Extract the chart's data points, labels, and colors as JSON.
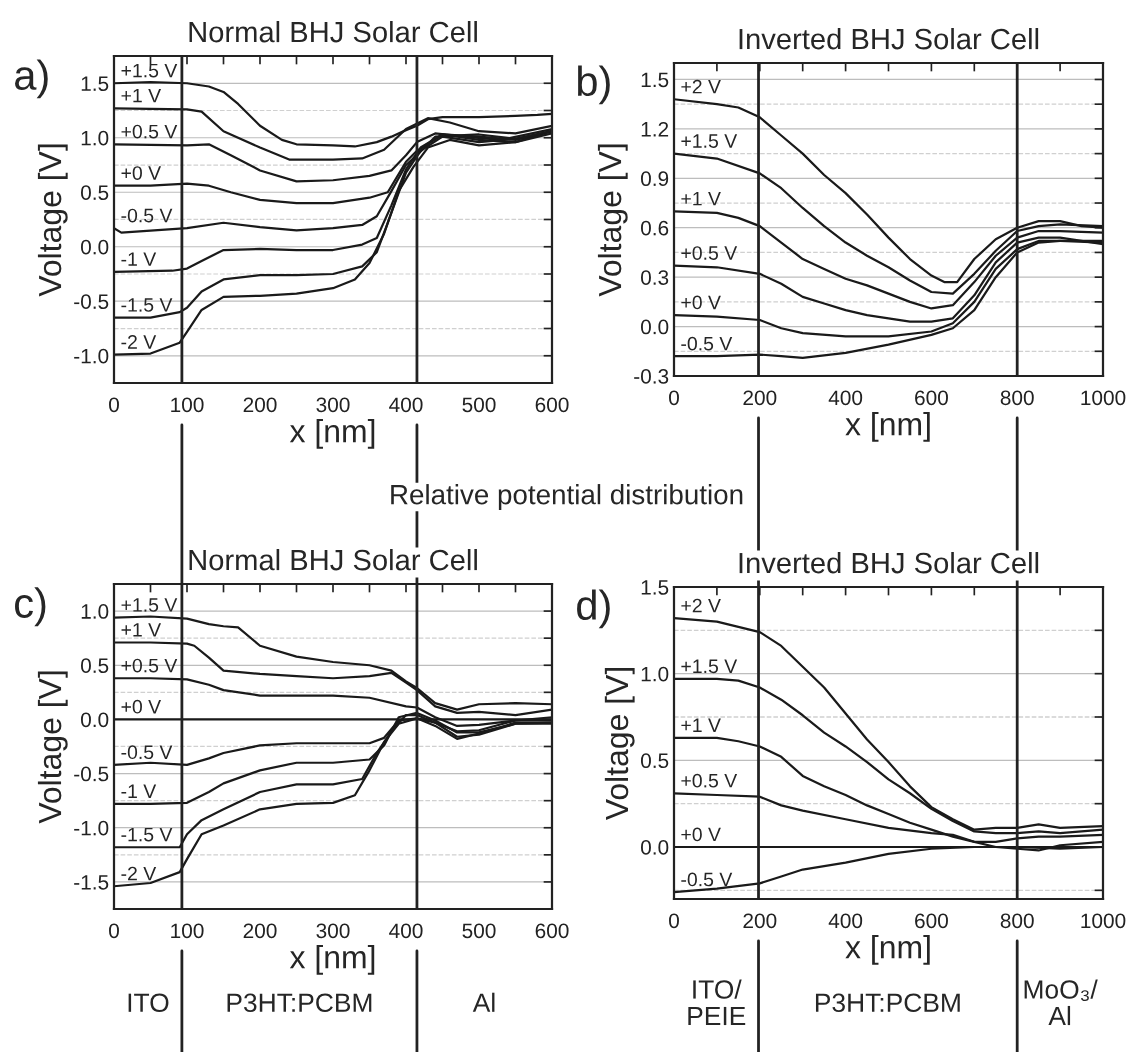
{
  "chart_data": [
    {
      "type": "line",
      "title": "Normal BHJ Solar Cell",
      "xlabel": "x [nm]",
      "ylabel": "Voltage [V]",
      "annotations": [
        "a)"
      ],
      "xlim": [
        0,
        600
      ],
      "ylim": [
        -1.25,
        1.75
      ],
      "xticks": [
        0,
        {
          "value": 50,
          "label": null
        },
        100,
        {
          "value": 150,
          "label": null
        },
        200,
        {
          "value": 250,
          "label": null
        },
        300,
        {
          "value": 350,
          "label": null
        },
        400,
        {
          "value": 450,
          "label": null
        },
        500,
        {
          "value": 550,
          "label": null
        },
        600
      ],
      "yticks": [
        {
          "value": -1,
          "label": "-1.0"
        },
        {
          "value": -0.75,
          "label": null
        },
        -0.5,
        {
          "value": -0.25,
          "label": null
        },
        {
          "value": 0,
          "label": "0.0"
        },
        {
          "value": 0.25,
          "label": null
        },
        0.5,
        {
          "value": 0.75,
          "label": null
        },
        {
          "value": 1,
          "label": "1.0"
        },
        {
          "value": 1.25,
          "label": null
        },
        1.5
      ],
      "grid": "y",
      "line_style": "solid",
      "marker": "none",
      "ref_lines": [
        {
          "axis": "x",
          "value": 93,
          "color": "#222222"
        },
        {
          "axis": "x",
          "value": 415,
          "color": "#222222"
        }
      ],
      "series": [
        {
          "name": "+1.5 V",
          "color": "#1a1a1a",
          "x": [
            0,
            50,
            100,
            130,
            150,
            170,
            200,
            230,
            250,
            300,
            330,
            360,
            380,
            400,
            415,
            430,
            450,
            500,
            550,
            580,
            600
          ],
          "values": [
            1.5,
            1.51,
            1.5,
            1.47,
            1.42,
            1.31,
            1.11,
            0.98,
            0.94,
            0.93,
            0.92,
            0.96,
            1.01,
            1.07,
            1.11,
            1.17,
            1.19,
            1.19,
            1.2,
            1.21,
            1.22
          ]
        },
        {
          "name": "+1 V",
          "color": "#1a1a1a",
          "x": [
            0,
            100,
            120,
            150,
            200,
            240,
            300,
            340,
            370,
            400,
            430,
            460,
            500,
            550,
            600
          ],
          "values": [
            1.27,
            1.26,
            1.24,
            1.06,
            0.91,
            0.8,
            0.8,
            0.81,
            0.89,
            1.08,
            1.18,
            1.14,
            1.06,
            1.04,
            1.11
          ]
        },
        {
          "name": "+0.5 V",
          "color": "#1a1a1a",
          "x": [
            0,
            100,
            130,
            160,
            200,
            250,
            300,
            350,
            380,
            400,
            415,
            440,
            480,
            530,
            600
          ],
          "values": [
            0.94,
            0.93,
            0.94,
            0.84,
            0.7,
            0.6,
            0.61,
            0.65,
            0.7,
            0.84,
            0.96,
            1.04,
            1.01,
            0.98,
            1.08
          ]
        },
        {
          "name": "+0 V",
          "color": "#1a1a1a",
          "x": [
            0,
            50,
            100,
            130,
            160,
            200,
            250,
            300,
            350,
            375,
            400,
            415,
            450,
            500,
            550,
            600
          ],
          "values": [
            0.56,
            0.56,
            0.58,
            0.56,
            0.5,
            0.43,
            0.4,
            0.4,
            0.45,
            0.5,
            0.78,
            0.88,
            1.03,
            0.98,
            0.96,
            1.06
          ]
        },
        {
          "name": "-0.5 V",
          "color": "#1a1a1a",
          "x": [
            0,
            10,
            100,
            150,
            200,
            250,
            300,
            340,
            360,
            380,
            400,
            415,
            440,
            500,
            550,
            600
          ],
          "values": [
            0.17,
            0.13,
            0.17,
            0.22,
            0.18,
            0.15,
            0.17,
            0.2,
            0.28,
            0.51,
            0.75,
            0.84,
            1.01,
            1.03,
            0.99,
            1.06
          ]
        },
        {
          "name": "-1 V",
          "color": "#1a1a1a",
          "x": [
            0,
            80,
            100,
            120,
            150,
            200,
            250,
            300,
            340,
            360,
            380,
            400,
            420,
            450,
            500,
            550,
            600
          ],
          "values": [
            -0.23,
            -0.22,
            -0.2,
            -0.13,
            -0.03,
            -0.02,
            -0.03,
            -0.03,
            0.02,
            0.08,
            0.38,
            0.71,
            0.91,
            1.03,
            1.01,
            0.98,
            1.06
          ]
        },
        {
          "name": "-1.5 V",
          "color": "#1a1a1a",
          "x": [
            0,
            50,
            90,
            100,
            120,
            150,
            200,
            250,
            300,
            340,
            360,
            375,
            400,
            420,
            450,
            500,
            550,
            600
          ],
          "values": [
            -0.65,
            -0.65,
            -0.6,
            -0.56,
            -0.41,
            -0.3,
            -0.26,
            -0.26,
            -0.25,
            -0.18,
            -0.05,
            0.22,
            0.68,
            0.88,
            1.01,
            0.96,
            0.99,
            1.06
          ]
        },
        {
          "name": "-2 V",
          "color": "#1a1a1a",
          "x": [
            0,
            50,
            90,
            100,
            120,
            150,
            200,
            250,
            300,
            330,
            350,
            370,
            390,
            410,
            430,
            460,
            500,
            550,
            600
          ],
          "values": [
            -0.99,
            -0.98,
            -0.88,
            -0.78,
            -0.58,
            -0.46,
            -0.45,
            -0.43,
            -0.38,
            -0.3,
            -0.15,
            0.12,
            0.51,
            0.73,
            0.91,
            0.98,
            0.93,
            0.96,
            1.04
          ]
        }
      ]
    },
    {
      "type": "line",
      "title": "Inverted BHJ Solar Cell",
      "xlabel": "x [nm]",
      "ylabel": "Voltage [V]",
      "annotations": [
        "b)"
      ],
      "xlim": [
        0,
        1000
      ],
      "ylim": [
        -0.3,
        1.6
      ],
      "xticks": [
        0,
        {
          "value": 100,
          "label": null
        },
        200,
        {
          "value": 300,
          "label": null
        },
        400,
        {
          "value": 500,
          "label": null
        },
        600,
        {
          "value": 700,
          "label": null
        },
        800,
        {
          "value": 900,
          "label": null
        },
        1000
      ],
      "yticks": [
        -0.3,
        {
          "value": -0.15,
          "label": null
        },
        {
          "value": 0,
          "label": "0.0"
        },
        {
          "value": 0.15,
          "label": null
        },
        0.3,
        {
          "value": 0.45,
          "label": null
        },
        0.6,
        {
          "value": 0.75,
          "label": null
        },
        0.9,
        {
          "value": 1.05,
          "label": null
        },
        1.2,
        {
          "value": 1.35,
          "label": null
        },
        1.5
      ],
      "grid": "y",
      "line_style": "solid",
      "marker": "none",
      "ref_lines": [
        {
          "axis": "x",
          "value": 197,
          "color": "#222222"
        },
        {
          "axis": "x",
          "value": 800,
          "color": "#222222"
        }
      ],
      "series": [
        {
          "name": "+2 V",
          "color": "#1a1a1a",
          "x": [
            0,
            100,
            150,
            200,
            250,
            300,
            350,
            400,
            450,
            500,
            550,
            600,
            630,
            660,
            700,
            750,
            800,
            850,
            900,
            950,
            1000
          ],
          "values": [
            1.38,
            1.35,
            1.33,
            1.27,
            1.16,
            1.05,
            0.92,
            0.81,
            0.68,
            0.54,
            0.41,
            0.31,
            0.27,
            0.27,
            0.41,
            0.53,
            0.6,
            0.64,
            0.64,
            0.61,
            0.6
          ]
        },
        {
          "name": "+1.5 V",
          "color": "#1a1a1a",
          "x": [
            0,
            100,
            200,
            250,
            300,
            350,
            400,
            450,
            500,
            550,
            600,
            650,
            700,
            750,
            800,
            850,
            900,
            1000
          ],
          "values": [
            1.05,
            1.02,
            0.93,
            0.84,
            0.72,
            0.61,
            0.51,
            0.43,
            0.36,
            0.28,
            0.21,
            0.2,
            0.32,
            0.46,
            0.58,
            0.61,
            0.62,
            0.61
          ]
        },
        {
          "name": "+1 V",
          "color": "#1a1a1a",
          "x": [
            0,
            100,
            150,
            200,
            250,
            300,
            350,
            400,
            450,
            500,
            550,
            600,
            650,
            700,
            750,
            800,
            850,
            900,
            1000
          ],
          "values": [
            0.7,
            0.69,
            0.66,
            0.61,
            0.51,
            0.41,
            0.35,
            0.29,
            0.25,
            0.2,
            0.15,
            0.11,
            0.13,
            0.27,
            0.43,
            0.54,
            0.58,
            0.58,
            0.57
          ]
        },
        {
          "name": "+0.5 V",
          "color": "#1a1a1a",
          "x": [
            0,
            100,
            200,
            250,
            300,
            350,
            400,
            450,
            500,
            550,
            600,
            650,
            700,
            750,
            800,
            850,
            900,
            1000
          ],
          "values": [
            0.37,
            0.36,
            0.32,
            0.26,
            0.18,
            0.14,
            0.1,
            0.07,
            0.05,
            0.03,
            0.03,
            0.05,
            0.19,
            0.39,
            0.51,
            0.54,
            0.54,
            0.5
          ]
        },
        {
          "name": "+0 V",
          "color": "#1a1a1a",
          "x": [
            0,
            100,
            200,
            250,
            300,
            400,
            500,
            600,
            650,
            700,
            750,
            800,
            850,
            900,
            1000
          ],
          "values": [
            0.07,
            0.06,
            0.04,
            -0.01,
            -0.04,
            -0.06,
            -0.06,
            -0.03,
            0.02,
            0.15,
            0.35,
            0.47,
            0.52,
            0.52,
            0.51
          ]
        },
        {
          "name": "-0.5 V",
          "color": "#1a1a1a",
          "x": [
            0,
            100,
            200,
            250,
            300,
            400,
            500,
            600,
            650,
            700,
            750,
            800,
            850,
            900,
            1000
          ],
          "values": [
            -0.18,
            -0.18,
            -0.17,
            -0.18,
            -0.19,
            -0.16,
            -0.11,
            -0.05,
            -0.01,
            0.1,
            0.3,
            0.45,
            0.51,
            0.52,
            0.52
          ]
        }
      ]
    },
    {
      "type": "line",
      "title": "Normal BHJ Solar Cell",
      "xlabel": "x [nm]",
      "ylabel": "Voltage [V]",
      "annotations": [
        "c)",
        "Relative potential distribution",
        "ITO",
        "P3HT:PCBM",
        "Al"
      ],
      "xlim": [
        0,
        600
      ],
      "ylim": [
        -1.75,
        1.25
      ],
      "xticks": [
        0,
        {
          "value": 50,
          "label": null
        },
        100,
        {
          "value": 150,
          "label": null
        },
        200,
        {
          "value": 250,
          "label": null
        },
        300,
        {
          "value": 350,
          "label": null
        },
        400,
        {
          "value": 450,
          "label": null
        },
        500,
        {
          "value": 550,
          "label": null
        },
        600
      ],
      "yticks": [
        -1.5,
        {
          "value": -1.25,
          "label": null
        },
        {
          "value": -1,
          "label": "-1.0"
        },
        {
          "value": -0.75,
          "label": null
        },
        -0.5,
        {
          "value": -0.25,
          "label": null
        },
        {
          "value": 0,
          "label": "0.0"
        },
        {
          "value": 0.25,
          "label": null
        },
        0.5,
        {
          "value": 0.75,
          "label": null
        },
        {
          "value": 1,
          "label": "1.0"
        }
      ],
      "grid": "y",
      "line_style": "solid",
      "marker": "none",
      "ref_lines": [
        {
          "axis": "x",
          "value": 93,
          "color": "#222222"
        },
        {
          "axis": "x",
          "value": 415,
          "color": "#222222"
        }
      ],
      "series": [
        {
          "name": "+1.5 V",
          "color": "#1a1a1a",
          "x": [
            0,
            50,
            100,
            130,
            150,
            170,
            200,
            250,
            300,
            350,
            380,
            400,
            415,
            440,
            470,
            500,
            550,
            600
          ],
          "values": [
            0.94,
            0.95,
            0.93,
            0.88,
            0.86,
            0.85,
            0.68,
            0.58,
            0.53,
            0.5,
            0.45,
            0.35,
            0.29,
            0.15,
            0.09,
            0.14,
            0.15,
            0.14
          ]
        },
        {
          "name": "+1 V",
          "color": "#1a1a1a",
          "x": [
            0,
            50,
            100,
            110,
            130,
            150,
            200,
            250,
            300,
            350,
            380,
            400,
            415,
            440,
            470,
            500,
            550,
            600
          ],
          "values": [
            0.71,
            0.71,
            0.7,
            0.68,
            0.57,
            0.45,
            0.42,
            0.4,
            0.38,
            0.4,
            0.43,
            0.34,
            0.27,
            0.12,
            0.06,
            0.07,
            0.04,
            0.09
          ]
        },
        {
          "name": "+0.5 V",
          "color": "#1a1a1a",
          "x": [
            0,
            50,
            100,
            130,
            150,
            200,
            250,
            300,
            350,
            400,
            415,
            440,
            470,
            500,
            550,
            600
          ],
          "values": [
            0.38,
            0.38,
            0.37,
            0.32,
            0.27,
            0.22,
            0.22,
            0.22,
            0.2,
            0.12,
            0.11,
            0.02,
            -0.06,
            -0.05,
            -0.01,
            0.02
          ]
        },
        {
          "name": "+0 V",
          "color": "#1a1a1a",
          "x": [
            0,
            600
          ],
          "values": [
            0,
            0
          ]
        },
        {
          "name": "-0.5 V",
          "color": "#1a1a1a",
          "x": [
            0,
            50,
            100,
            130,
            150,
            200,
            250,
            300,
            350,
            370,
            390,
            415,
            440,
            470,
            500,
            550,
            600
          ],
          "values": [
            -0.42,
            -0.4,
            -0.42,
            -0.36,
            -0.31,
            -0.24,
            -0.22,
            -0.22,
            -0.22,
            -0.17,
            -0.01,
            0.01,
            -0.03,
            -0.11,
            -0.1,
            -0.01,
            -0.01
          ]
        },
        {
          "name": "-1 V",
          "color": "#1a1a1a",
          "x": [
            0,
            50,
            100,
            130,
            150,
            200,
            250,
            300,
            350,
            370,
            390,
            415,
            440,
            470,
            500,
            550,
            600
          ],
          "values": [
            -0.78,
            -0.78,
            -0.77,
            -0.67,
            -0.59,
            -0.47,
            -0.4,
            -0.4,
            -0.37,
            -0.24,
            0.02,
            0.06,
            -0.01,
            -0.12,
            -0.12,
            -0.04,
            -0.04
          ]
        },
        {
          "name": "-1.5 V",
          "color": "#1a1a1a",
          "x": [
            0,
            50,
            90,
            100,
            120,
            150,
            200,
            250,
            300,
            340,
            360,
            380,
            400,
            415,
            440,
            470,
            500,
            550,
            600
          ],
          "values": [
            -1.18,
            -1.18,
            -1.18,
            -1.06,
            -0.93,
            -0.83,
            -0.67,
            -0.6,
            -0.6,
            -0.55,
            -0.31,
            -0.11,
            0.04,
            0.04,
            -0.03,
            -0.16,
            -0.14,
            -0.04,
            -0.03
          ]
        },
        {
          "name": "-2 V",
          "color": "#1a1a1a",
          "x": [
            0,
            50,
            90,
            100,
            120,
            150,
            200,
            250,
            300,
            330,
            350,
            370,
            390,
            415,
            440,
            470,
            500,
            550,
            600
          ],
          "values": [
            -1.54,
            -1.51,
            -1.41,
            -1.29,
            -1.06,
            -0.98,
            -0.83,
            -0.78,
            -0.77,
            -0.7,
            -0.47,
            -0.21,
            -0.04,
            0.01,
            -0.06,
            -0.18,
            -0.13,
            -0.03,
            -0.03
          ]
        }
      ]
    },
    {
      "type": "line",
      "title": "Inverted BHJ Solar Cell",
      "xlabel": "x [nm]",
      "ylabel": "Voltage [V]",
      "annotations": [
        "d)",
        "ITO/\nPEIE",
        "P3HT:PCBM",
        "MoO₃/\nAl"
      ],
      "xlim": [
        0,
        1000
      ],
      "ylim": [
        -0.3,
        1.5
      ],
      "xticks": [
        0,
        {
          "value": 100,
          "label": null
        },
        200,
        {
          "value": 300,
          "label": null
        },
        400,
        {
          "value": 500,
          "label": null
        },
        600,
        {
          "value": 700,
          "label": null
        },
        800,
        {
          "value": 900,
          "label": null
        },
        1000
      ],
      "yticks": [
        {
          "value": -0.25,
          "label": null
        },
        {
          "value": 0,
          "label": "0.0"
        },
        {
          "value": 0.25,
          "label": null
        },
        0.5,
        {
          "value": 0.75,
          "label": null
        },
        {
          "value": 1,
          "label": "1.0"
        },
        {
          "value": 1.25,
          "label": null
        },
        1.5
      ],
      "grid": "y",
      "line_style": "solid",
      "marker": "none",
      "ref_lines": [
        {
          "axis": "x",
          "value": 197,
          "color": "#222222"
        },
        {
          "axis": "x",
          "value": 800,
          "color": "#222222"
        }
      ],
      "series": [
        {
          "name": "+2 V",
          "color": "#1a1a1a",
          "x": [
            0,
            100,
            150,
            200,
            250,
            300,
            350,
            400,
            450,
            500,
            550,
            600,
            650,
            700,
            750,
            800,
            850,
            900,
            1000
          ],
          "values": [
            1.32,
            1.3,
            1.27,
            1.24,
            1.16,
            1.04,
            0.92,
            0.77,
            0.62,
            0.49,
            0.35,
            0.23,
            0.16,
            0.1,
            0.11,
            0.11,
            0.13,
            0.11,
            0.12
          ]
        },
        {
          "name": "+1.5 V",
          "color": "#1a1a1a",
          "x": [
            0,
            100,
            150,
            200,
            250,
            300,
            350,
            400,
            450,
            500,
            550,
            600,
            650,
            700,
            750,
            800,
            850,
            900,
            1000
          ],
          "values": [
            0.97,
            0.97,
            0.96,
            0.92,
            0.85,
            0.76,
            0.66,
            0.58,
            0.49,
            0.39,
            0.31,
            0.22,
            0.15,
            0.09,
            0.08,
            0.08,
            0.09,
            0.08,
            0.1
          ]
        },
        {
          "name": "+1 V",
          "color": "#1a1a1a",
          "x": [
            0,
            100,
            150,
            200,
            250,
            300,
            350,
            400,
            450,
            500,
            550,
            600,
            650,
            700,
            750,
            800,
            850,
            900,
            1000
          ],
          "values": [
            0.63,
            0.63,
            0.61,
            0.58,
            0.52,
            0.41,
            0.35,
            0.3,
            0.24,
            0.19,
            0.14,
            0.1,
            0.06,
            0.03,
            0.03,
            0.05,
            0.06,
            0.06,
            0.07
          ]
        },
        {
          "name": "+0.5 V",
          "color": "#1a1a1a",
          "x": [
            0,
            100,
            200,
            250,
            300,
            400,
            500,
            600,
            650,
            700,
            750,
            800,
            850,
            900,
            1000
          ],
          "values": [
            0.31,
            0.3,
            0.29,
            0.24,
            0.21,
            0.16,
            0.11,
            0.08,
            0.07,
            0.03,
            0.0,
            -0.01,
            -0.02,
            0.01,
            0.03
          ]
        },
        {
          "name": "+0 V",
          "color": "#1a1a1a",
          "x": [
            0,
            1000
          ],
          "values": [
            0,
            0
          ]
        },
        {
          "name": "-0.5 V",
          "color": "#1a1a1a",
          "x": [
            0,
            100,
            200,
            250,
            300,
            400,
            500,
            600,
            700,
            800,
            900,
            1000
          ],
          "values": [
            -0.26,
            -0.24,
            -0.21,
            -0.17,
            -0.13,
            -0.09,
            -0.04,
            -0.01,
            0.0,
            0.0,
            -0.01,
            0.0
          ]
        }
      ]
    }
  ]
}
